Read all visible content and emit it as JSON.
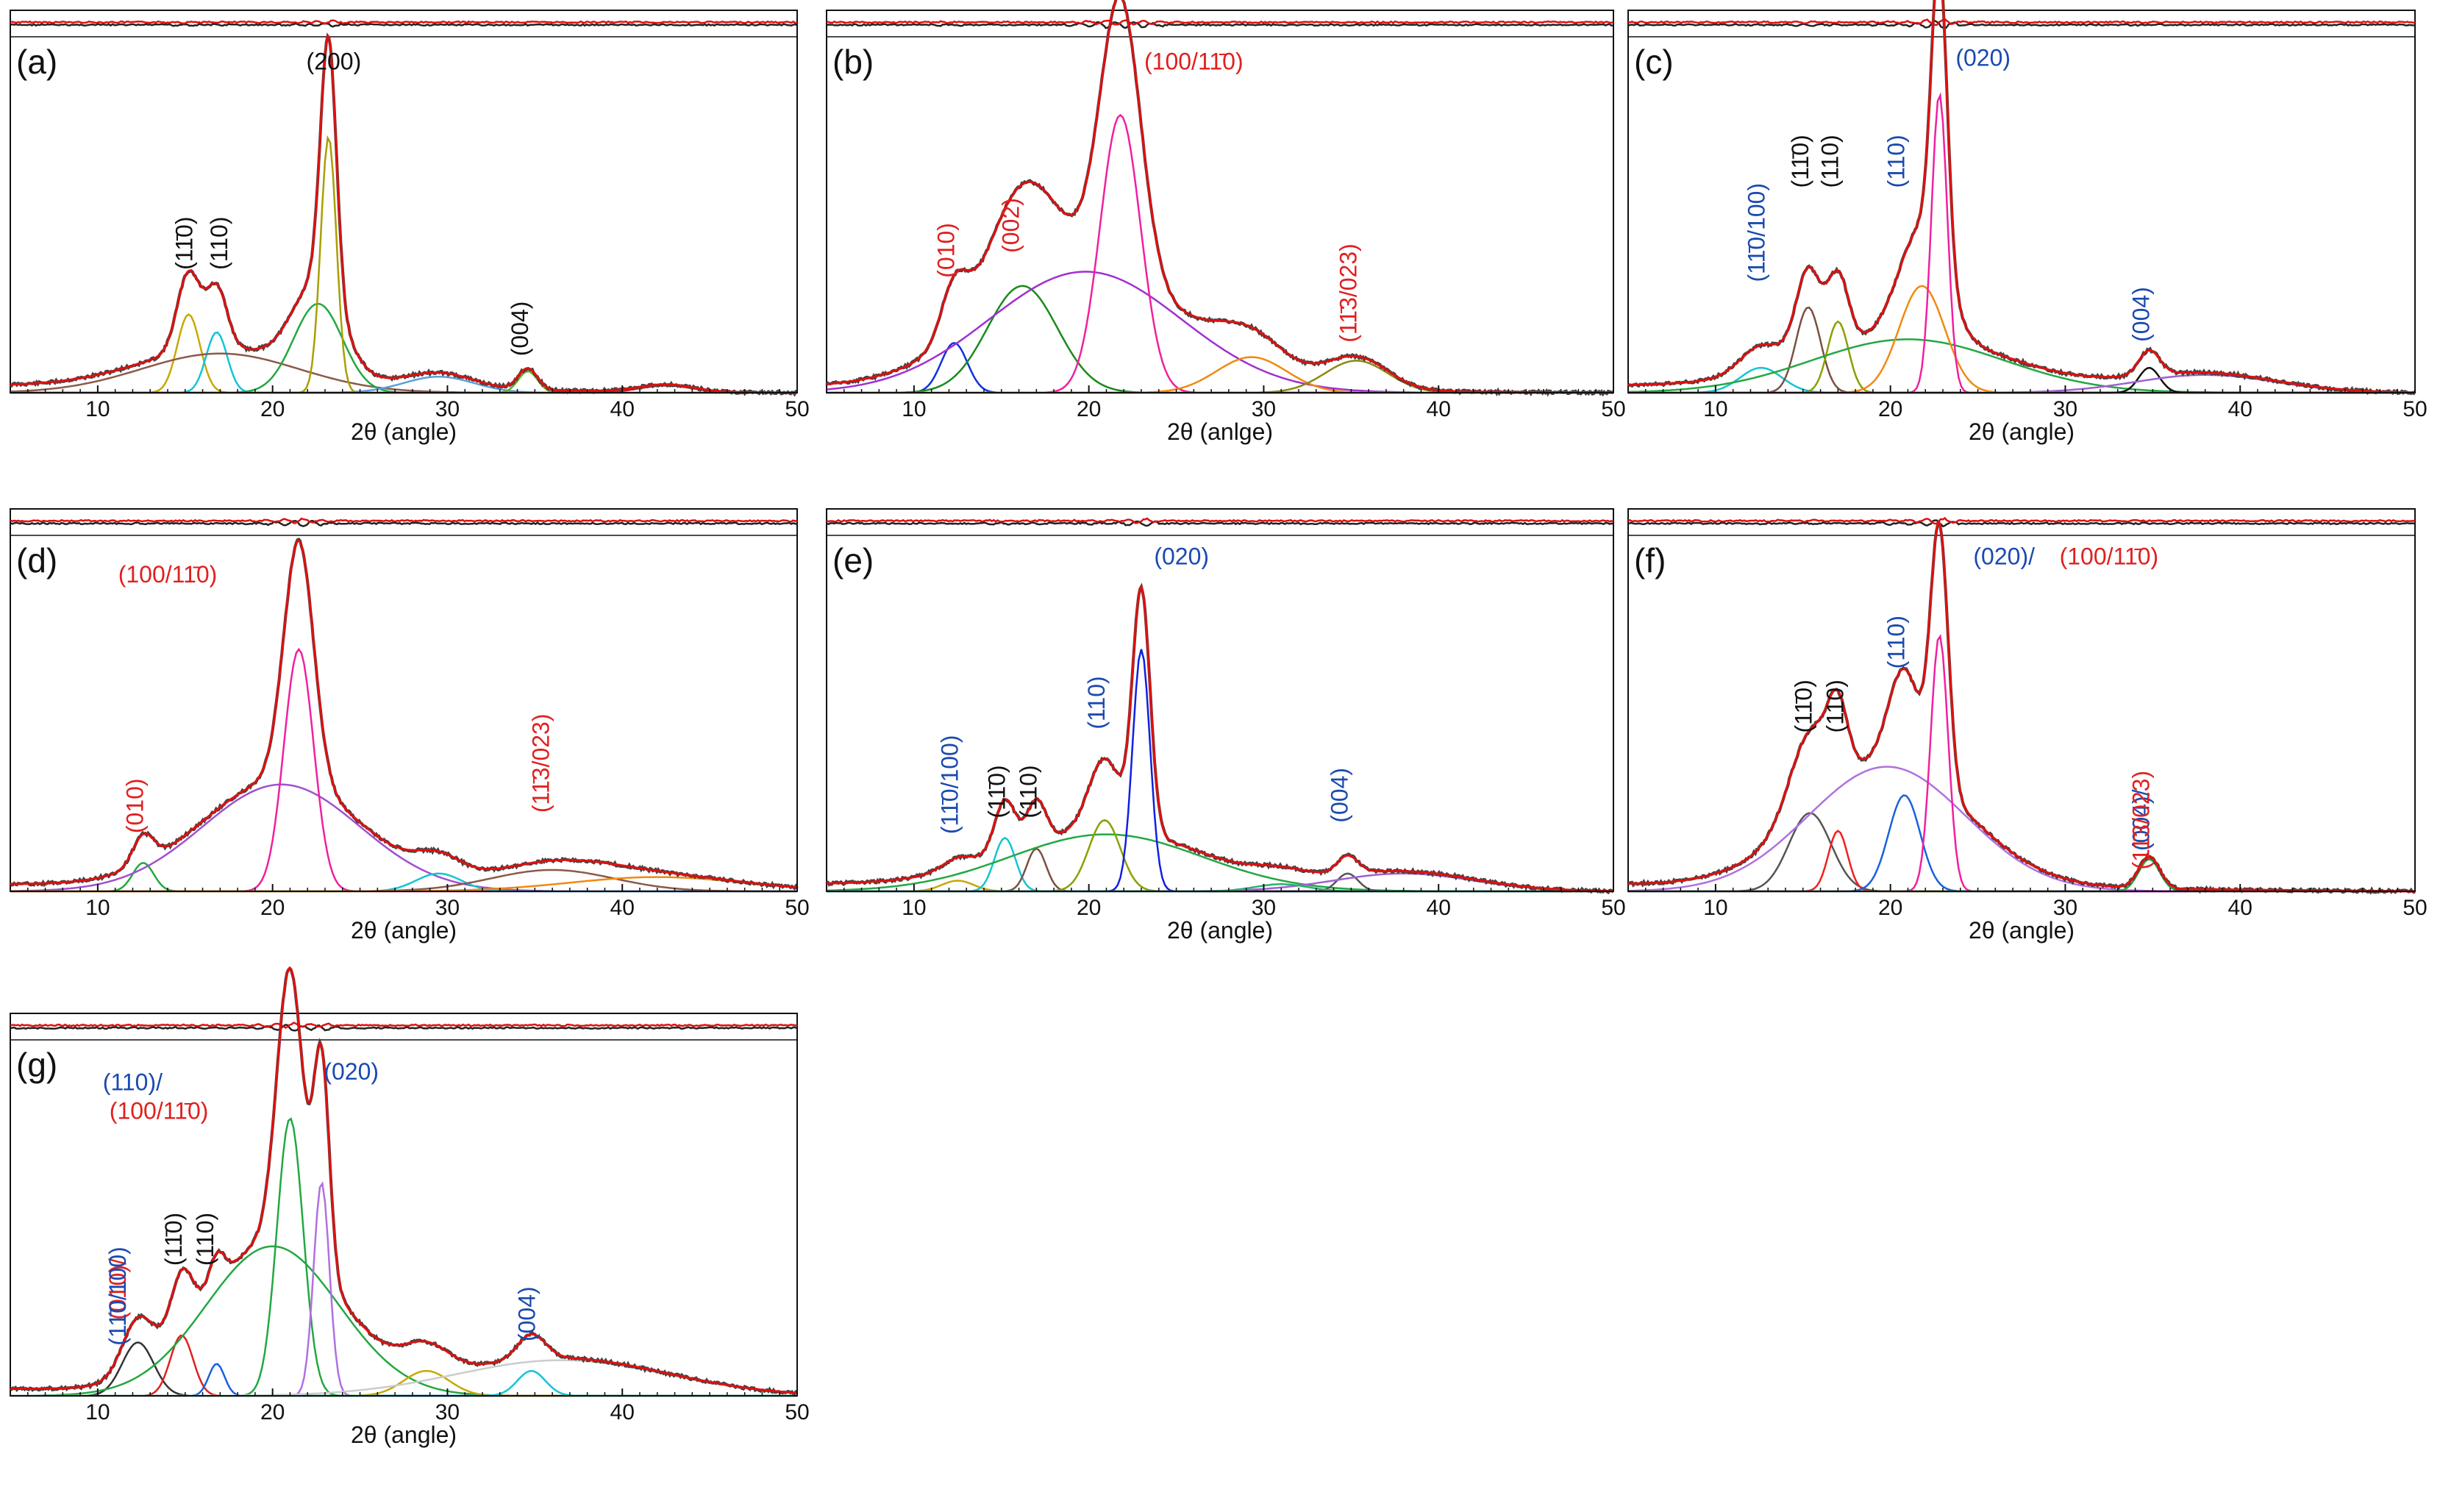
{
  "chart_data": [
    {
      "type": "line",
      "panel_label": "(a)",
      "xlabel": "2θ (angle)",
      "xlim": [
        5,
        50
      ],
      "xticks": [
        10,
        20,
        30,
        40,
        50
      ],
      "yticks": false,
      "annotations": [
        {
          "text": "(11̄0)",
          "x": 15.4,
          "rotated": true,
          "color": "#111111"
        },
        {
          "text": "(110)",
          "x": 17.4,
          "rotated": true,
          "color": "#111111"
        },
        {
          "text": "(200)",
          "x": 23.5,
          "rotated": false,
          "color": "#111111"
        },
        {
          "text": "(004)",
          "x": 34.6,
          "rotated": true,
          "color": "#111111"
        }
      ],
      "peaks": [
        {
          "center": 15.2,
          "height": 0.22,
          "width": 0.65,
          "color": "#c9a800"
        },
        {
          "center": 16.8,
          "height": 0.17,
          "width": 0.6,
          "color": "#14c4d4"
        },
        {
          "center": 17.0,
          "height": 0.11,
          "width": 4.5,
          "color": "#8a5a4a"
        },
        {
          "center": 22.6,
          "height": 0.25,
          "width": 1.4,
          "color": "#22a842"
        },
        {
          "center": 23.2,
          "height": 0.72,
          "width": 0.45,
          "color": "#a8a000"
        },
        {
          "center": 29.5,
          "height": 0.045,
          "width": 2.0,
          "color": "#5aa0d8"
        },
        {
          "center": 34.6,
          "height": 0.06,
          "width": 0.55,
          "color": "#6ab020"
        },
        {
          "center": 42.5,
          "height": 0.02,
          "width": 1.5,
          "color": "#d02020"
        }
      ],
      "baseline": {
        "start": 0.02,
        "end": 0.0
      }
    },
    {
      "type": "line",
      "panel_label": "(b)",
      "xlabel": "2θ (anlge)",
      "xlim": [
        5,
        50
      ],
      "xticks": [
        10,
        20,
        30,
        40,
        50
      ],
      "yticks": false,
      "annotations": [
        {
          "text": "(010)",
          "x": 12.3,
          "rotated": true,
          "color": "#e02020"
        },
        {
          "text": "(002)",
          "x": 16.0,
          "rotated": true,
          "color": "#e02020"
        },
        {
          "text": "(100/11̄0)",
          "x": 26.0,
          "rotated": false,
          "color": "#e02020"
        },
        {
          "text": "(11̄3/023)",
          "x": 35.3,
          "rotated": true,
          "color": "#e02020"
        }
      ],
      "peaks": [
        {
          "center": 12.3,
          "height": 0.14,
          "width": 0.75,
          "color": "#1030e0"
        },
        {
          "center": 16.2,
          "height": 0.3,
          "width": 2.0,
          "color": "#1a8a1a"
        },
        {
          "center": 19.8,
          "height": 0.34,
          "width": 5.5,
          "color": "#a030d0"
        },
        {
          "center": 21.8,
          "height": 0.78,
          "width": 1.15,
          "color": "#f020a0"
        },
        {
          "center": 29.3,
          "height": 0.1,
          "width": 2.0,
          "color": "#f08a10"
        },
        {
          "center": 35.3,
          "height": 0.09,
          "width": 1.8,
          "color": "#8a8a10"
        }
      ],
      "baseline": {
        "start": 0.015,
        "end": 0.0
      }
    },
    {
      "type": "line",
      "panel_label": "(c)",
      "xlabel": "2θ (angle)",
      "xlim": [
        5,
        50
      ],
      "xticks": [
        10,
        20,
        30,
        40,
        50
      ],
      "yticks": false,
      "annotations": [
        {
          "text": "(11̄0/100)",
          "x": 12.8,
          "rotated": true,
          "color": "#1a4ab0"
        },
        {
          "text": "(11̄0)",
          "x": 15.3,
          "rotated": true,
          "color": "#111111"
        },
        {
          "text": "(110)",
          "x": 17.0,
          "rotated": true,
          "color": "#111111"
        },
        {
          "text": "(110)",
          "x": 20.8,
          "rotated": true,
          "color": "#1a4ab0"
        },
        {
          "text": "(020)",
          "x": 25.3,
          "rotated": false,
          "color": "#1a4ab0"
        },
        {
          "text": "(004)",
          "x": 34.8,
          "rotated": true,
          "color": "#1a4ab0"
        }
      ],
      "peaks": [
        {
          "center": 12.6,
          "height": 0.07,
          "width": 1.2,
          "color": "#14c4d4"
        },
        {
          "center": 15.3,
          "height": 0.24,
          "width": 0.7,
          "color": "#7a5040"
        },
        {
          "center": 17.0,
          "height": 0.2,
          "width": 0.6,
          "color": "#8aa000"
        },
        {
          "center": 21.0,
          "height": 0.15,
          "width": 5.5,
          "color": "#22a842"
        },
        {
          "center": 21.8,
          "height": 0.3,
          "width": 1.3,
          "color": "#f08a10"
        },
        {
          "center": 22.8,
          "height": 0.84,
          "width": 0.45,
          "color": "#f020a0"
        },
        {
          "center": 34.8,
          "height": 0.07,
          "width": 0.6,
          "color": "#111111"
        },
        {
          "center": 38.0,
          "height": 0.05,
          "width": 4.0,
          "color": "#a060d0"
        }
      ],
      "baseline": {
        "start": 0.02,
        "end": 0.0
      }
    },
    {
      "type": "line",
      "panel_label": "(d)",
      "xlabel": "2θ (angle)",
      "xlim": [
        5,
        50
      ],
      "xticks": [
        10,
        20,
        30,
        40,
        50
      ],
      "yticks": false,
      "annotations": [
        {
          "text": "(100/11̄0)",
          "x": 14.0,
          "rotated": false,
          "color": "#e02020"
        },
        {
          "text": "(010)",
          "x": 12.6,
          "rotated": true,
          "color": "#e02020"
        },
        {
          "text": "(11̄3/023)",
          "x": 35.8,
          "rotated": true,
          "color": "#e02020"
        }
      ],
      "peaks": [
        {
          "center": 12.6,
          "height": 0.08,
          "width": 0.6,
          "color": "#22a842"
        },
        {
          "center": 20.5,
          "height": 0.3,
          "width": 4.5,
          "color": "#a050d0"
        },
        {
          "center": 21.5,
          "height": 0.68,
          "width": 0.85,
          "color": "#f020a0"
        },
        {
          "center": 29.5,
          "height": 0.05,
          "width": 1.3,
          "color": "#14c4d4"
        },
        {
          "center": 36.0,
          "height": 0.06,
          "width": 3.5,
          "color": "#8a5a4a"
        },
        {
          "center": 42.0,
          "height": 0.04,
          "width": 5.0,
          "color": "#f08a10"
        }
      ],
      "baseline": {
        "start": 0.02,
        "end": 0.0
      }
    },
    {
      "type": "line",
      "panel_label": "(e)",
      "xlabel": "2θ (angle)",
      "xlim": [
        5,
        50
      ],
      "xticks": [
        10,
        20,
        30,
        40,
        50
      ],
      "yticks": false,
      "annotations": [
        {
          "text": "(11̄0/100)",
          "x": 12.5,
          "rotated": true,
          "color": "#1a4ab0"
        },
        {
          "text": "(11̄0)",
          "x": 15.2,
          "rotated": true,
          "color": "#111111"
        },
        {
          "text": "(110)",
          "x": 17.0,
          "rotated": true,
          "color": "#111111"
        },
        {
          "text": "(110)",
          "x": 20.9,
          "rotated": true,
          "color": "#1a4ab0"
        },
        {
          "text": "(020)",
          "x": 25.3,
          "rotated": false,
          "color": "#1a4ab0"
        },
        {
          "text": "(004)",
          "x": 34.8,
          "rotated": true,
          "color": "#1a4ab0"
        }
      ],
      "peaks": [
        {
          "center": 12.5,
          "height": 0.03,
          "width": 0.9,
          "color": "#c9a800"
        },
        {
          "center": 15.2,
          "height": 0.15,
          "width": 0.6,
          "color": "#14c4d4"
        },
        {
          "center": 17.0,
          "height": 0.12,
          "width": 0.55,
          "color": "#7a5040"
        },
        {
          "center": 21.0,
          "height": 0.16,
          "width": 5.5,
          "color": "#22a842"
        },
        {
          "center": 20.9,
          "height": 0.2,
          "width": 0.9,
          "color": "#8aa000"
        },
        {
          "center": 23.0,
          "height": 0.68,
          "width": 0.5,
          "color": "#1020e0"
        },
        {
          "center": 34.8,
          "height": 0.05,
          "width": 0.6,
          "color": "#555555"
        },
        {
          "center": 38.0,
          "height": 0.05,
          "width": 4.0,
          "color": "#a060d0"
        },
        {
          "center": 31.0,
          "height": 0.02,
          "width": 1.5,
          "color": "#2ab070"
        }
      ],
      "baseline": {
        "start": 0.02,
        "end": 0.0
      }
    },
    {
      "type": "line",
      "panel_label": "(f)",
      "xlabel": "2θ (angle)",
      "xlim": [
        5,
        50
      ],
      "xticks": [
        10,
        20,
        30,
        40,
        50
      ],
      "yticks": false,
      "annotations": [
        {
          "text": "(11̄0)",
          "x": 15.5,
          "rotated": true,
          "color": "#111111"
        },
        {
          "text": "(110)",
          "x": 17.3,
          "rotated": true,
          "color": "#111111"
        },
        {
          "text": "(110)",
          "x": 20.8,
          "rotated": true,
          "color": "#1a4ab0"
        },
        {
          "text": "(020)/",
          "x": 26.5,
          "rotated": false,
          "color": "#1a4ab0"
        },
        {
          "text": "(100/11̄0)",
          "x": 32.5,
          "rotated": false,
          "color": "#e02020"
        },
        {
          "text": "(004)/",
          "x": 34.8,
          "rotated": true,
          "color": "#1a4ab0"
        },
        {
          "text": "(11̄3/023)",
          "x": 34.8,
          "rotated": true,
          "color": "#e02020"
        }
      ],
      "peaks": [
        {
          "center": 15.4,
          "height": 0.22,
          "width": 1.2,
          "color": "#555555"
        },
        {
          "center": 17.0,
          "height": 0.17,
          "width": 0.55,
          "color": "#f02020"
        },
        {
          "center": 19.8,
          "height": 0.35,
          "width": 4.5,
          "color": "#b070e0"
        },
        {
          "center": 20.8,
          "height": 0.27,
          "width": 0.9,
          "color": "#1a60e0"
        },
        {
          "center": 22.8,
          "height": 0.72,
          "width": 0.5,
          "color": "#f020a0"
        },
        {
          "center": 34.8,
          "height": 0.09,
          "width": 0.6,
          "color": "#22a842"
        }
      ],
      "baseline": {
        "start": 0.02,
        "end": 0.0
      }
    },
    {
      "type": "line",
      "panel_label": "(g)",
      "xlabel": "2θ (angle)",
      "xlim": [
        5,
        50
      ],
      "xticks": [
        10,
        20,
        30,
        40,
        50
      ],
      "yticks": false,
      "annotations": [
        {
          "text": "(010)/",
          "x": 11.6,
          "rotated": true,
          "color": "#e02020"
        },
        {
          "text": "(11̄0/100)",
          "x": 11.6,
          "rotated": true,
          "color": "#1a4ab0"
        },
        {
          "text": "(11̄0)",
          "x": 14.8,
          "rotated": true,
          "color": "#111111"
        },
        {
          "text": "(110)",
          "x": 16.6,
          "rotated": true,
          "color": "#111111"
        },
        {
          "text": "(110)/",
          "x": 12.0,
          "rotated": false,
          "color": "#1a4ab0"
        },
        {
          "text": "(100/11̄0)",
          "x": 13.5,
          "rotated": false,
          "color": "#e02020"
        },
        {
          "text": "(020)",
          "x": 24.5,
          "rotated": false,
          "color": "#1a4ab0"
        },
        {
          "text": "(004)",
          "x": 35.0,
          "rotated": true,
          "color": "#1a4ab0"
        }
      ],
      "peaks": [
        {
          "center": 12.3,
          "height": 0.15,
          "width": 0.9,
          "color": "#333333"
        },
        {
          "center": 14.8,
          "height": 0.17,
          "width": 0.65,
          "color": "#e02020"
        },
        {
          "center": 16.8,
          "height": 0.09,
          "width": 0.45,
          "color": "#1a60e0"
        },
        {
          "center": 20.0,
          "height": 0.42,
          "width": 3.8,
          "color": "#22a842"
        },
        {
          "center": 21.0,
          "height": 0.78,
          "width": 0.75,
          "color": "#22a842"
        },
        {
          "center": 22.8,
          "height": 0.6,
          "width": 0.45,
          "color": "#b070e0"
        },
        {
          "center": 28.8,
          "height": 0.07,
          "width": 1.3,
          "color": "#c9a800"
        },
        {
          "center": 34.8,
          "height": 0.07,
          "width": 0.8,
          "color": "#14c4d4"
        },
        {
          "center": 36.5,
          "height": 0.1,
          "width": 6.0,
          "color": "#cccccc"
        }
      ],
      "baseline": {
        "start": 0.02,
        "end": 0.0
      }
    }
  ]
}
